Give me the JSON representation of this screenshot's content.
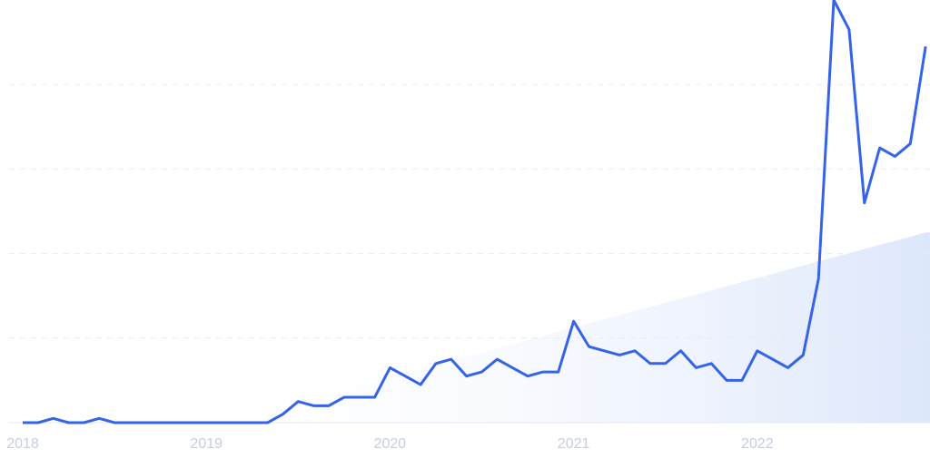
{
  "chart_data": {
    "type": "line",
    "categories": [
      "2018",
      null,
      null,
      null,
      null,
      null,
      null,
      null,
      null,
      null,
      null,
      null,
      "2019",
      null,
      null,
      null,
      null,
      null,
      null,
      null,
      null,
      null,
      null,
      null,
      "2020",
      null,
      null,
      null,
      null,
      null,
      null,
      null,
      null,
      null,
      null,
      null,
      "2021",
      null,
      null,
      null,
      null,
      null,
      null,
      null,
      null,
      null,
      null,
      null,
      "2022",
      null,
      null,
      null,
      null,
      null,
      null,
      null,
      null,
      null,
      null,
      null
    ],
    "series": [
      {
        "color": "#3563e9",
        "values": [
          0,
          0,
          1,
          0,
          0,
          1,
          0,
          0,
          0,
          0,
          0,
          0,
          0,
          0,
          0,
          0,
          0,
          2,
          5,
          4,
          4,
          6,
          6,
          6,
          13,
          11,
          9,
          14,
          15,
          11,
          12,
          15,
          13,
          11,
          12,
          12,
          24,
          18,
          17,
          16,
          17,
          14,
          14,
          17,
          13,
          14,
          10,
          10,
          17,
          15,
          13,
          16,
          34,
          100,
          93,
          52,
          65,
          63,
          66,
          89
        ]
      }
    ],
    "trend": {
      "color": "#dde7fb",
      "values": [
        null,
        null,
        null,
        null,
        null,
        null,
        null,
        null,
        null,
        null,
        null,
        null,
        null,
        0,
        1.0,
        2.0,
        2.9,
        3.9,
        4.9,
        5.9,
        6.8,
        7.8,
        8.8,
        9.8,
        10.8,
        11.7,
        12.7,
        13.7,
        14.7,
        15.7,
        16.6,
        17.6,
        18.6,
        19.6,
        20.5,
        21.5,
        22.5,
        23.5,
        24.5,
        25.4,
        26.4,
        27.4,
        28.4,
        29.3,
        30.3,
        31.3,
        32.3,
        33.3,
        34.2,
        35.2,
        36.2,
        37.2,
        38.2,
        39.1,
        40.1,
        41.1,
        42.1,
        43.0,
        44.0,
        45.0
      ]
    },
    "ylim": [
      0,
      100
    ],
    "yticks": [
      0,
      20,
      40,
      60,
      80
    ],
    "grid": true
  }
}
